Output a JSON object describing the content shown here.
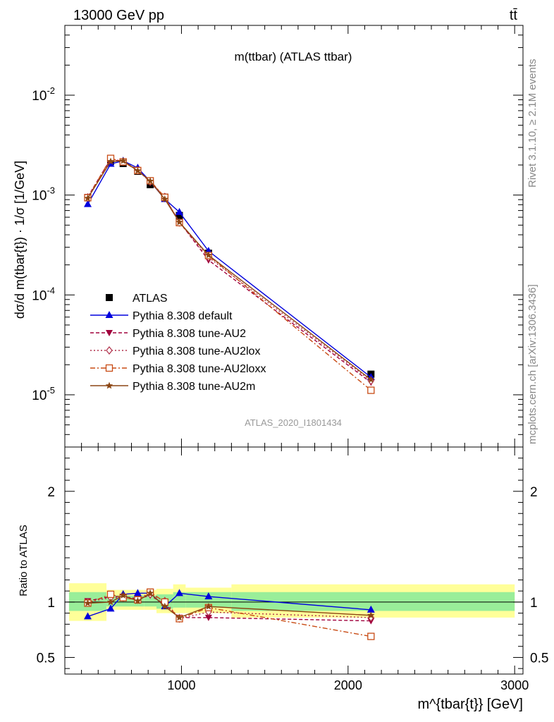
{
  "header": {
    "left": "13000 GeV pp",
    "right": "tt̄"
  },
  "side_labels": {
    "rivet": "Rivet 3.1.10, ≥ 2.1M events",
    "mcplots": "mcplots.cern.ch [arXiv:1306.3436]"
  },
  "chart_data": [
    {
      "type": "line",
      "panel": "main",
      "title": "m(ttbar) (ATLAS ttbar)",
      "watermark": "ATLAS_2020_I1801434",
      "ylabel": "dσ/d m(tbar{t}) · 1/σ [1/GeV]",
      "yscale": "log",
      "ylim": [
        3e-06,
        0.05
      ],
      "xlim": [
        300,
        3050
      ],
      "ytick_labels": [
        "10^-5",
        "10^-4",
        "10^-3",
        "10^-2"
      ],
      "legend_position": "lower-left",
      "x": [
        437.5,
        575,
        650,
        737.5,
        812.5,
        900,
        987.5,
        1162.5,
        2137.5
      ],
      "series": [
        {
          "name": "ATLAS",
          "color": "#000000",
          "marker": "square",
          "line": "none",
          "values": [
            0.00094,
            0.00218,
            0.00207,
            0.00173,
            0.00127,
            0.00095,
            0.000625,
            0.000262,
            1.61e-05
          ]
        },
        {
          "name": "Pythia 8.308 default",
          "color": "#0000dd",
          "marker": "triangle-up",
          "line": "solid",
          "values": [
            0.00081,
            0.00205,
            0.0022,
            0.00187,
            0.00137,
            0.00091,
            0.000675,
            0.000275,
            1.5e-05
          ]
        },
        {
          "name": "Pythia 8.308 tune-AU2",
          "color": "#a0003c",
          "marker": "triangle-down",
          "line": "dashed",
          "values": [
            0.00096,
            0.0023,
            0.00217,
            0.00179,
            0.00135,
            0.00093,
            0.00054,
            0.000223,
            1.33e-05
          ]
        },
        {
          "name": "Pythia 8.308 tune-AU2lox",
          "color": "#b0304a",
          "marker": "diamond-open",
          "line": "dotted",
          "values": [
            0.00095,
            0.00227,
            0.00216,
            0.00177,
            0.00136,
            0.00096,
            0.00053,
            0.000238,
            1.38e-05
          ]
        },
        {
          "name": "Pythia 8.308 tune-AU2loxx",
          "color": "#c84b14",
          "marker": "square-open",
          "line": "dashdot",
          "values": [
            0.00094,
            0.00233,
            0.00215,
            0.00176,
            0.00139,
            0.00095,
            0.00053,
            0.000248,
            1.11e-05
          ]
        },
        {
          "name": "Pythia 8.308 tune-AU2m",
          "color": "#8b4513",
          "marker": "star",
          "line": "solid",
          "values": [
            0.00093,
            0.00217,
            0.0022,
            0.00175,
            0.00138,
            0.00091,
            0.000535,
            0.00025,
            1.42e-05
          ]
        }
      ]
    },
    {
      "type": "line",
      "panel": "ratio",
      "ylabel": "Ratio to ATLAS",
      "xlabel": "m^{tbar{t}} [GeV]",
      "ylim": [
        0.35,
        2.4
      ],
      "xlim": [
        300,
        3050
      ],
      "yticks": [
        0.5,
        1,
        2
      ],
      "ytick_labels": [
        "0.5",
        "1",
        "2"
      ],
      "xticks": [
        1000,
        2000,
        3000
      ],
      "xtick_labels": [
        "1000",
        "2000",
        "3000"
      ],
      "bands": {
        "edges": [
          325,
          550,
          600,
          700,
          775,
          850,
          950,
          1025,
          1300,
          3000
        ],
        "green": [
          [
            0.92,
            1.09
          ],
          [
            0.96,
            1.06
          ],
          [
            0.96,
            1.06
          ],
          [
            0.96,
            1.06
          ],
          [
            0.96,
            1.06
          ],
          [
            0.94,
            1.07
          ],
          [
            0.95,
            1.09
          ],
          [
            0.95,
            1.09
          ],
          [
            0.92,
            1.09
          ]
        ],
        "yellow": [
          [
            0.83,
            1.17
          ],
          [
            0.93,
            1.11
          ],
          [
            0.93,
            1.11
          ],
          [
            0.93,
            1.11
          ],
          [
            0.93,
            1.11
          ],
          [
            0.9,
            1.12
          ],
          [
            0.9,
            1.16
          ],
          [
            0.9,
            1.13
          ],
          [
            0.86,
            1.16
          ]
        ]
      },
      "x": [
        437.5,
        575,
        650,
        737.5,
        812.5,
        900,
        987.5,
        1162.5,
        2137.5
      ],
      "series": [
        {
          "name": "Pythia 8.308 default",
          "values": [
            0.87,
            0.94,
            1.07,
            1.08,
            1.08,
            0.96,
            1.08,
            1.05,
            0.93
          ]
        },
        {
          "name": "Pythia 8.308 tune-AU2",
          "values": [
            1.01,
            1.05,
            1.05,
            1.03,
            1.06,
            0.98,
            0.86,
            0.86,
            0.83
          ]
        },
        {
          "name": "Pythia 8.308 tune-AU2lox",
          "values": [
            1.0,
            1.04,
            1.04,
            1.02,
            1.07,
            1.01,
            0.85,
            0.91,
            0.86
          ]
        },
        {
          "name": "Pythia 8.308 tune-AU2loxx",
          "values": [
            0.99,
            1.07,
            1.04,
            1.02,
            1.09,
            1.0,
            0.85,
            0.95,
            0.69
          ]
        },
        {
          "name": "Pythia 8.308 tune-AU2m",
          "values": [
            0.99,
            1.0,
            1.06,
            1.01,
            1.08,
            0.96,
            0.86,
            0.96,
            0.88
          ]
        }
      ]
    }
  ]
}
